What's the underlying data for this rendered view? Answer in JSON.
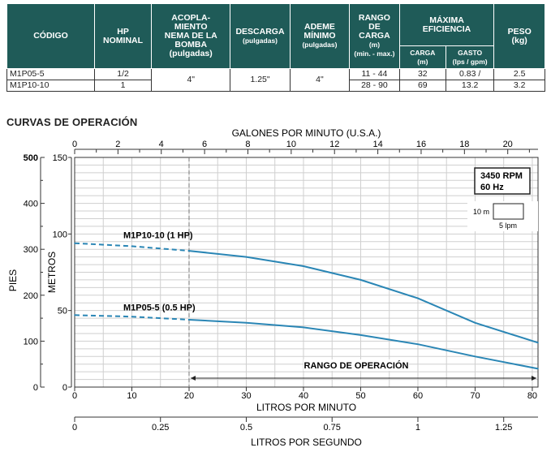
{
  "table": {
    "headers": {
      "codigo": "CÓDIGO",
      "hp": [
        "HP",
        "NOMINAL"
      ],
      "acople": [
        "ACOPLA-",
        "MIENTO",
        "NEMA DE LA",
        "BOMBA",
        "(pulgadas)"
      ],
      "descarga": [
        "DESCARGA",
        "(pulgadas)"
      ],
      "ademe": [
        "ADEME",
        "MÍNIMO",
        "(pulgadas)"
      ],
      "rango": [
        "RANGO",
        "DE",
        "CARGA",
        "(m)",
        "(min. - max.)"
      ],
      "maxima": [
        "MÁXIMA",
        "EFICIENCIA"
      ],
      "carga": [
        "CARGA",
        "(m)"
      ],
      "gasto": [
        "GASTO",
        "(lps / gpm)"
      ],
      "peso": [
        "PESO",
        "(kg)"
      ]
    },
    "rows": [
      {
        "codigo": "M1P05-5",
        "hp": "1/2",
        "rango": "11 - 44",
        "carga": "32",
        "gasto": "0.83 /",
        "peso": "2.5"
      },
      {
        "codigo": "M1P10-10",
        "hp": "1",
        "rango": "28 - 90",
        "carga": "69",
        "gasto": "13.2",
        "peso": "3.2"
      }
    ],
    "shared": {
      "acople": "4\"",
      "descarga": "1.25\"",
      "ademe": "4\""
    }
  },
  "section_title": "CURVAS DE OPERACIÓN",
  "chart_data": {
    "type": "line",
    "x_primary": {
      "label": "LITROS POR MINUTO",
      "range": [
        0,
        81
      ],
      "ticks": [
        0,
        10,
        20,
        30,
        40,
        50,
        60,
        70,
        80
      ]
    },
    "x_top": {
      "label": "GALONES POR MINUTO (U.S.A.)",
      "ticks": [
        0,
        2,
        4,
        6,
        8,
        10,
        12,
        14,
        16,
        18,
        20
      ]
    },
    "x_bottom2": {
      "label": "LITROS POR SEGUNDO",
      "ticks": [
        "0",
        "0.25",
        "0.5",
        "0.75",
        "1",
        "1.25"
      ]
    },
    "y_meters": {
      "label": "METROS",
      "range": [
        0,
        150
      ],
      "ticks": [
        0,
        50,
        100,
        150
      ]
    },
    "y_feet": {
      "label": "PIES",
      "ticks": [
        0,
        100,
        200,
        300,
        400,
        500
      ]
    },
    "series": [
      {
        "name": "M1P10-10 (1 HP)",
        "color": "#2a86b5",
        "x": [
          0,
          10,
          20,
          30,
          40,
          50,
          60,
          70,
          81
        ],
        "y": [
          94,
          92,
          89,
          85,
          79,
          70,
          58,
          42,
          29
        ]
      },
      {
        "name": "M1P05-5 (0.5 HP)",
        "color": "#2a86b5",
        "x": [
          0,
          10,
          20,
          30,
          40,
          50,
          60,
          70,
          81
        ],
        "y": [
          47,
          46,
          44,
          42,
          39,
          34,
          28,
          20,
          12
        ]
      }
    ],
    "dashed_below_x": 20,
    "operation_range": {
      "label": "RANGO DE OPERACIÓN",
      "from": 20,
      "to": 81
    },
    "legend_box": {
      "rpm": "3450 RPM",
      "hz": "60 Hz",
      "scale_v": "10 m",
      "scale_h": "5 lpm"
    },
    "grid": true
  }
}
